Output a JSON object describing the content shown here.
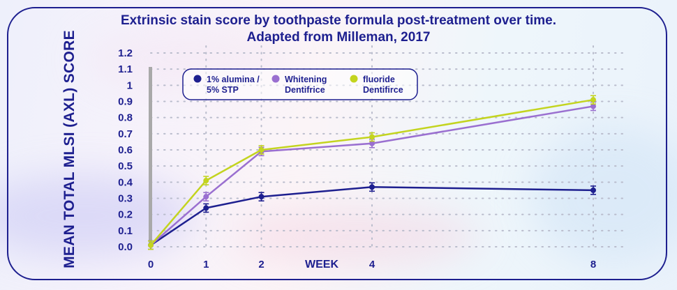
{
  "title_line1": "Extrinsic stain score by toothpaste formula post-treatment over time.",
  "title_line2": "Adapted from Milleman, 2017",
  "colors": {
    "navy": "#1d1f8f",
    "alumina": "#1d1f8f",
    "whitening": "#9a6fd0",
    "fluoride": "#c3d41f",
    "grid": "#b9bccc",
    "axis": "#a9a9a9"
  },
  "chart_data": {
    "type": "line",
    "title": "Extrinsic stain score by toothpaste formula post-treatment over time. Adapted from Milleman, 2017",
    "xlabel": "WEEK",
    "ylabel": "MEAN TOTAL MLSI (AXL) SCORE",
    "x": [
      0,
      1,
      2,
      4,
      8
    ],
    "xticks": [
      "0",
      "1",
      "2",
      "4",
      "8"
    ],
    "yticks": [
      "0.0",
      "0.1",
      "0.2",
      "0.3",
      "0.4",
      "0.5",
      "0.6",
      "0.7",
      "0.8",
      "0.9",
      "1",
      "1.1",
      "1.2"
    ],
    "ylim": [
      0,
      1.2
    ],
    "legend_position": "top-left",
    "series": [
      {
        "name": "1% alumina / 5% STP",
        "legend_lines": [
          "1% alumina /",
          "5% STP"
        ],
        "color": "#1d1f8f",
        "values": [
          0.01,
          0.24,
          0.31,
          0.37,
          0.35
        ]
      },
      {
        "name": "Whitening Dentifrice",
        "legend_lines": [
          "Whitening",
          "Dentifrice"
        ],
        "color": "#9a6fd0",
        "values": [
          0.01,
          0.31,
          0.59,
          0.64,
          0.87
        ]
      },
      {
        "name": "fluoride Dentifirce",
        "legend_lines": [
          "fluoride",
          "Dentifirce"
        ],
        "color": "#c3d41f",
        "values": [
          0.01,
          0.41,
          0.6,
          0.68,
          0.91
        ]
      }
    ]
  }
}
